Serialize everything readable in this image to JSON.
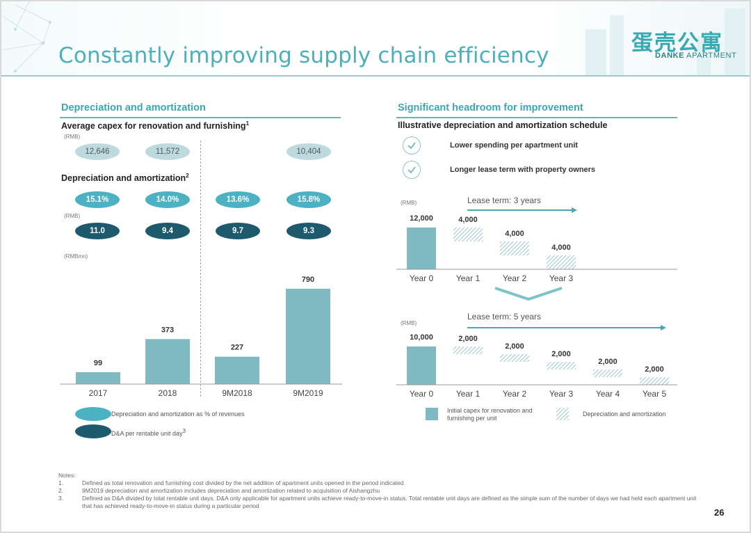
{
  "title": "Constantly improving supply chain efficiency",
  "logo": {
    "cn": "蛋壳公寓",
    "en_bold": "DANKE",
    "en_rest": " APARTMENT"
  },
  "left": {
    "section_title": "Depreciation and amortization",
    "capex_title": "Average capex for renovation and furnishing",
    "capex_sup": "1",
    "capex_unit": "(RMB)",
    "capex_values": [
      "12,646",
      "11,572",
      "",
      "10,404"
    ],
    "da_title": "Depreciation and amortization",
    "da_sup": "2",
    "pct_values": [
      "15.1%",
      "14.0%",
      "13.6%",
      "15.8%"
    ],
    "perday_unit": "(RMB)",
    "perday_values": [
      "11.0",
      "9.4",
      "9.7",
      "9.3"
    ],
    "bar_unit": "(RMBmn)",
    "legend_pct": "Depreciation and amortization as % of revenues",
    "legend_day": "D&A per rentable unit day",
    "legend_day_sup": "3"
  },
  "right": {
    "section_title": "Significant headroom for improvement",
    "sub_title": "Illustrative depreciation and amortization schedule",
    "checks": [
      "Lower spending per apartment unit",
      "Longer lease term with property owners"
    ],
    "legend_capex": "Initial capex for renovation and furnishing per unit",
    "legend_da": "Depreciation and amortization"
  },
  "chart_data": [
    {
      "type": "bar",
      "title": "Depreciation and amortization",
      "ylabel": "(RMBmn)",
      "categories": [
        "2017",
        "2018",
        "9M2018",
        "9M2019"
      ],
      "values": [
        99,
        373,
        227,
        790
      ],
      "ylim": [
        0,
        850
      ],
      "color": "#7fb9c1"
    },
    {
      "type": "bar",
      "title": "Lease term: 3 years",
      "ylabel": "(RMB)",
      "categories": [
        "Year 0",
        "Year 1",
        "Year 2",
        "Year 3"
      ],
      "capex": 12000,
      "capex_label": "12,000",
      "da": [
        4000,
        4000,
        4000
      ],
      "da_labels": [
        "4,000",
        "4,000",
        "4,000"
      ]
    },
    {
      "type": "bar",
      "title": "Lease term: 5 years",
      "ylabel": "(RMB)",
      "categories": [
        "Year 0",
        "Year 1",
        "Year 2",
        "Year 3",
        "Year 4",
        "Year 5"
      ],
      "capex": 10000,
      "capex_label": "10,000",
      "da": [
        2000,
        2000,
        2000,
        2000,
        2000
      ],
      "da_labels": [
        "2,000",
        "2,000",
        "2,000",
        "2,000",
        "2,000"
      ]
    }
  ],
  "notes": {
    "heading": "Notes:",
    "items": [
      {
        "num": "1.",
        "text": "Defined as total renovation and furnishing cost divided by the net addition of apartment units opened in the period indicated"
      },
      {
        "num": "2.",
        "text": "9M2019 depreciation and amortization includes depreciation and amortization related to acquisition of Aishangzhu"
      },
      {
        "num": "3.",
        "text": "Defined as D&A divided by total rentable unit days. D&A only applicable for apartment units achieve ready-to-move-in status. Total rentable unit days are defined as the simple sum of the number of days we had held each apartment unit that has achieved ready-to-move-in status during a particular period"
      }
    ]
  },
  "page_number": "26",
  "colors": {
    "accent": "#3ca7b2",
    "bar": "#7fb9c1",
    "dark": "#1d5a6d",
    "teal": "#4cb1c3",
    "gray": "#bfdade"
  }
}
